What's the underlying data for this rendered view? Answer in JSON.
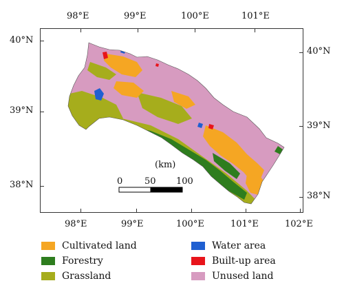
{
  "axes": {
    "top_lon": [
      "98°E",
      "99°E",
      "100°E",
      "101°E"
    ],
    "bottom_lon": [
      "98°E",
      "99°E",
      "100°E",
      "101°E",
      "102°E"
    ],
    "left_lat": [
      "40°N",
      "39°N",
      "38°N"
    ],
    "right_lat": [
      "40°N",
      "39°N",
      "38°N"
    ]
  },
  "scalebar": {
    "unit": "(km)",
    "ticks": [
      "0",
      "50",
      "100"
    ]
  },
  "legend": [
    {
      "label": "Cultivated land",
      "color": "#f5a623"
    },
    {
      "label": "Forestry",
      "color": "#2e7d1e"
    },
    {
      "label": "Grassland",
      "color": "#a6ad1c"
    },
    {
      "label": "Water area",
      "color": "#1f5fd1"
    },
    {
      "label": "Built-up area",
      "color": "#e8141b"
    },
    {
      "label": "Unused land",
      "color": "#d79bc0"
    }
  ]
}
